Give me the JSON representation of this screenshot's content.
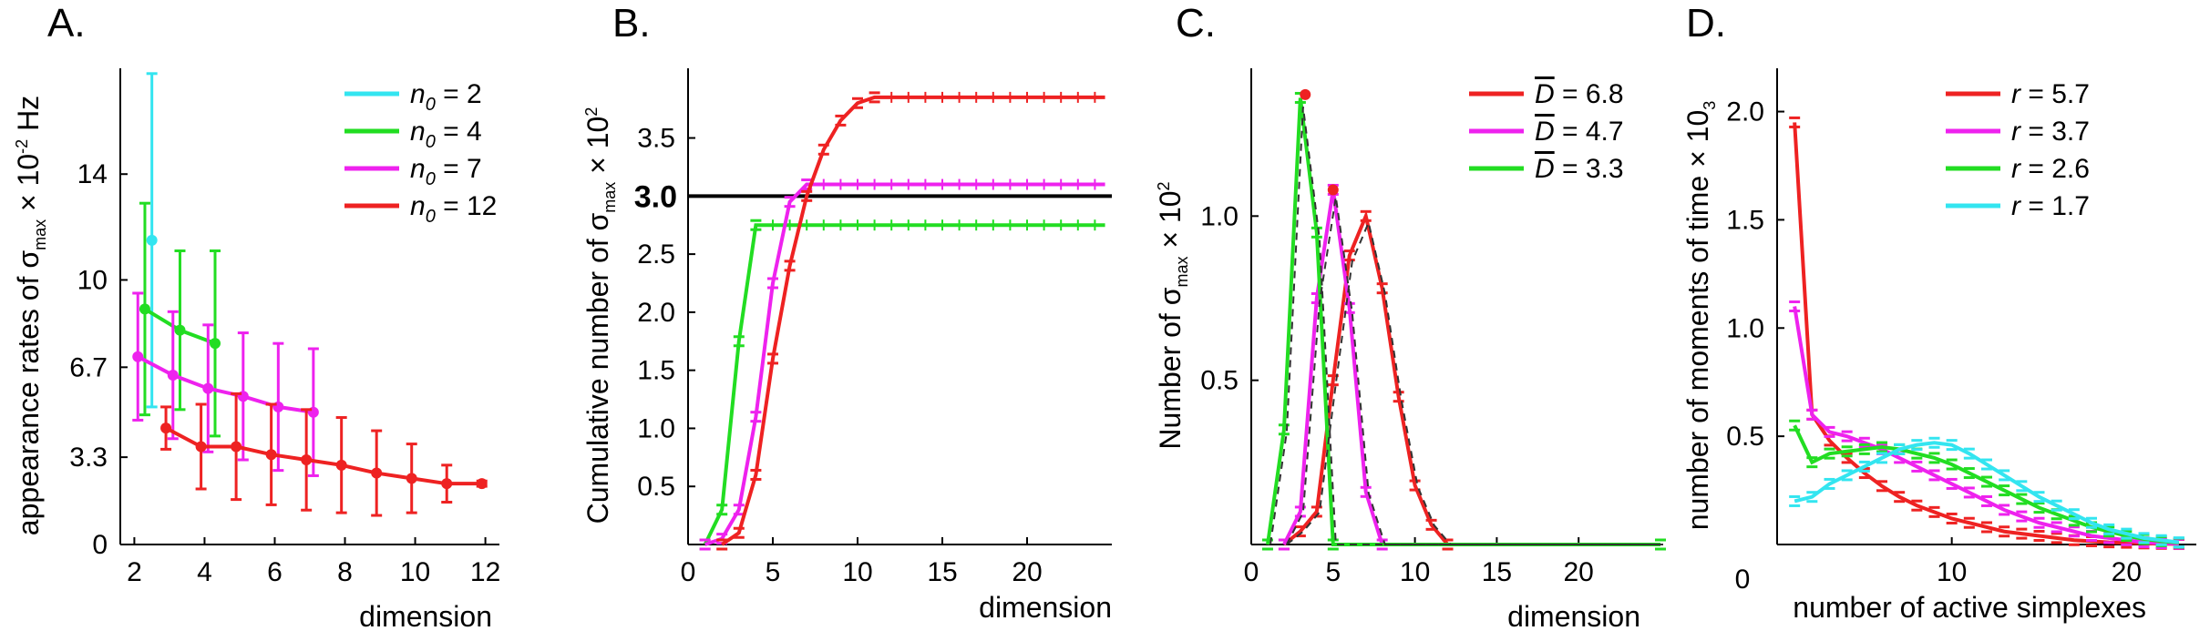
{
  "chart_data": [
    {
      "panel": "A.",
      "type": "line",
      "xlabel": "dimension",
      "ylabel_parts": [
        "appearance rates of σ",
        "max",
        " × 10",
        "-2",
        " Hz"
      ],
      "xlim": [
        1.6,
        12.4
      ],
      "ylim": [
        0,
        18
      ],
      "xticks": [
        2,
        4,
        6,
        8,
        10,
        12
      ],
      "xtick_labels": [
        "2",
        "4",
        "6",
        "8",
        "10",
        "12"
      ],
      "yticks": [
        0,
        3.3,
        6.7,
        10,
        14
      ],
      "ytick_labels": [
        "0",
        "3.3",
        "6.7",
        "10",
        "14"
      ],
      "legend": {
        "placement": "top-right",
        "entries": [
          {
            "var": "n",
            "sub": "0",
            "text": " = 2"
          },
          {
            "var": "n",
            "sub": "0",
            "text": " = 4"
          },
          {
            "var": "n",
            "sub": "0",
            "text": " = 7"
          },
          {
            "var": "n",
            "sub": "0",
            "text": " = 12"
          }
        ]
      },
      "series": [
        {
          "name": "n0 = 2",
          "color": "#33e5f0",
          "x": [
            2.5
          ],
          "y": [
            11.5
          ],
          "err": [
            6.3
          ]
        },
        {
          "name": "n0 = 4",
          "color": "#22dd22",
          "x": [
            2.3,
            3.3,
            4.3
          ],
          "y": [
            8.9,
            8.1,
            7.6
          ],
          "err": [
            4.0,
            3.0,
            3.5
          ]
        },
        {
          "name": "n0 = 7",
          "color": "#ee22ee",
          "x": [
            2.1,
            3.1,
            4.1,
            5.1,
            6.1,
            7.1
          ],
          "y": [
            7.1,
            6.4,
            5.9,
            5.6,
            5.2,
            5.0
          ],
          "err": [
            2.4,
            2.4,
            2.4,
            2.4,
            2.4,
            2.4
          ]
        },
        {
          "name": "n0 = 12",
          "color": "#ee2222",
          "x": [
            2.9,
            3.9,
            4.9,
            5.9,
            6.9,
            7.9,
            8.9,
            9.9,
            10.9,
            11.9
          ],
          "y": [
            4.4,
            3.7,
            3.7,
            3.4,
            3.2,
            3.0,
            2.7,
            2.5,
            2.3,
            2.3
          ],
          "err": [
            0.8,
            1.6,
            2.0,
            1.9,
            1.9,
            1.8,
            1.6,
            1.3,
            0.7,
            0.1
          ]
        }
      ]
    },
    {
      "panel": "B.",
      "type": "line",
      "xlabel": "dimension",
      "ylabel_parts": [
        "Cumulative number of σ",
        "max",
        " × 10",
        "2",
        ""
      ],
      "xlim": [
        0,
        25
      ],
      "ylim": [
        0,
        4.1
      ],
      "xticks": [
        0,
        5,
        10,
        15,
        20
      ],
      "xtick_labels": [
        "0",
        "5",
        "10",
        "15",
        "20"
      ],
      "yticks": [
        0.5,
        1.0,
        1.5,
        2.0,
        2.5,
        3.5
      ],
      "ytick_labels": [
        "0.5",
        "1.0",
        "1.5",
        "2.0",
        "2.5",
        "3.5"
      ],
      "reference_line": {
        "y": 3.0,
        "label": "3.0",
        "color": "#000000"
      },
      "series": [
        {
          "name": "green",
          "color": "#22dd22",
          "x": [
            1,
            2,
            3,
            4
          ],
          "y": [
            0,
            0.3,
            1.75,
            2.75
          ],
          "plateau_to": 24.6,
          "plateau": 2.75
        },
        {
          "name": "magenta",
          "color": "#ee22ee",
          "x": [
            1,
            2,
            3,
            4,
            5,
            6,
            7
          ],
          "y": [
            0,
            0.05,
            0.3,
            1.1,
            2.25,
            2.95,
            3.1
          ],
          "plateau_to": 24.6,
          "plateau": 3.1
        },
        {
          "name": "red",
          "color": "#ee2222",
          "x": [
            2,
            3,
            4,
            5,
            6,
            7,
            8,
            9,
            10,
            11
          ],
          "y": [
            0,
            0.1,
            0.6,
            1.6,
            2.4,
            3.0,
            3.4,
            3.65,
            3.8,
            3.85
          ],
          "plateau_to": 24.6,
          "plateau": 3.85
        }
      ]
    },
    {
      "panel": "C.",
      "type": "line",
      "xlabel": "dimension",
      "ylabel_parts": [
        "Number of σ",
        "max",
        " × 10",
        "2",
        ""
      ],
      "xlim": [
        0,
        25
      ],
      "ylim": [
        0,
        1.45
      ],
      "xticks": [
        0,
        5,
        10,
        15,
        20
      ],
      "xtick_labels": [
        "0",
        "5",
        "10",
        "15",
        "20"
      ],
      "yticks": [
        0.5,
        1.0
      ],
      "ytick_labels": [
        "0.5",
        "1.0"
      ],
      "legend": {
        "placement": "top-right",
        "entries": [
          {
            "var": "D",
            "text": " = 6.8"
          },
          {
            "var": "D",
            "text": " = 4.7"
          },
          {
            "var": "D",
            "text": " = 3.3"
          }
        ]
      },
      "series": [
        {
          "name": "D = 6.8",
          "color": "#ee2222",
          "x": [
            2,
            3,
            4,
            5,
            6,
            7,
            8,
            9,
            10,
            11,
            12,
            25
          ],
          "y": [
            0,
            0.04,
            0.1,
            0.5,
            0.88,
            1.0,
            0.78,
            0.45,
            0.18,
            0.06,
            0,
            0
          ]
        },
        {
          "name": "D = 4.7",
          "color": "#ee22ee",
          "x": [
            2,
            3,
            4,
            5,
            6,
            7,
            8,
            25
          ],
          "y": [
            0,
            0.1,
            0.75,
            1.08,
            0.72,
            0.16,
            0,
            0
          ]
        },
        {
          "name": "D = 3.3",
          "color": "#22dd22",
          "x": [
            1,
            2,
            3,
            4,
            5,
            25
          ],
          "y": [
            0,
            0.35,
            1.36,
            0.95,
            0,
            0
          ]
        }
      ],
      "fit_peaks": [
        {
          "color": "#ee2222",
          "x": 3.3,
          "y": 1.37
        },
        {
          "color": "#ee2222",
          "x": 5.0,
          "y": 1.08
        }
      ]
    },
    {
      "panel": "D.",
      "type": "line",
      "xlabel": "number of active simplexes",
      "ylabel_parts": [
        "number of moments of time × 10",
        "3",
        "",
        "",
        ""
      ],
      "xlim": [
        0,
        24
      ],
      "ylim": [
        0,
        2.2
      ],
      "xticks": [
        10,
        20
      ],
      "xtick_labels": [
        "10",
        "20"
      ],
      "yticks": [
        0.5,
        1.0,
        1.5,
        2.0
      ],
      "ytick_labels": [
        "0.5",
        "1.0",
        "1.5",
        "2.0"
      ],
      "origin_label": "0",
      "legend": {
        "placement": "top-right",
        "entries": [
          {
            "var": "r",
            "text": " = 5.7"
          },
          {
            "var": "r",
            "text": " = 3.7"
          },
          {
            "var": "r",
            "text": " = 2.6"
          },
          {
            "var": "r",
            "text": " = 1.7"
          }
        ]
      },
      "series": [
        {
          "name": "r = 5.7",
          "color": "#ee2222",
          "x": [
            1,
            2,
            3,
            4,
            5,
            6,
            7,
            8,
            9,
            10,
            11,
            12,
            13,
            14,
            15,
            16,
            17,
            18,
            19,
            20,
            21,
            22,
            23
          ],
          "y": [
            1.95,
            0.6,
            0.48,
            0.4,
            0.33,
            0.27,
            0.22,
            0.18,
            0.15,
            0.12,
            0.1,
            0.08,
            0.06,
            0.05,
            0.04,
            0.03,
            0.02,
            0.015,
            0.01,
            0.008,
            0.005,
            0.003,
            0.002
          ]
        },
        {
          "name": "r = 3.7",
          "color": "#ee22ee",
          "x": [
            1,
            2,
            3,
            4,
            5,
            6,
            7,
            8,
            9,
            10,
            11,
            12,
            13,
            14,
            15,
            16,
            17,
            18,
            19,
            20,
            21,
            22,
            23
          ],
          "y": [
            1.1,
            0.6,
            0.52,
            0.5,
            0.47,
            0.44,
            0.4,
            0.36,
            0.32,
            0.28,
            0.24,
            0.2,
            0.16,
            0.13,
            0.1,
            0.08,
            0.06,
            0.04,
            0.03,
            0.02,
            0.01,
            0.006,
            0.003
          ]
        },
        {
          "name": "r = 2.6",
          "color": "#22dd22",
          "x": [
            1,
            2,
            3,
            4,
            5,
            6,
            7,
            8,
            9,
            10,
            11,
            12,
            13,
            14,
            15,
            16,
            17,
            18,
            19,
            20,
            21,
            22,
            23
          ],
          "y": [
            0.55,
            0.38,
            0.42,
            0.43,
            0.44,
            0.45,
            0.44,
            0.42,
            0.4,
            0.37,
            0.33,
            0.29,
            0.25,
            0.21,
            0.17,
            0.14,
            0.11,
            0.08,
            0.06,
            0.04,
            0.025,
            0.015,
            0.008
          ]
        },
        {
          "name": "r = 1.7",
          "color": "#33e5f0",
          "x": [
            1,
            2,
            3,
            4,
            5,
            6,
            7,
            8,
            9,
            10,
            11,
            12,
            13,
            14,
            15,
            16,
            17,
            18,
            19,
            20,
            21,
            22,
            23
          ],
          "y": [
            0.2,
            0.22,
            0.28,
            0.32,
            0.36,
            0.4,
            0.44,
            0.46,
            0.47,
            0.46,
            0.42,
            0.37,
            0.32,
            0.27,
            0.22,
            0.18,
            0.14,
            0.1,
            0.07,
            0.05,
            0.03,
            0.02,
            0.01
          ]
        }
      ]
    }
  ]
}
